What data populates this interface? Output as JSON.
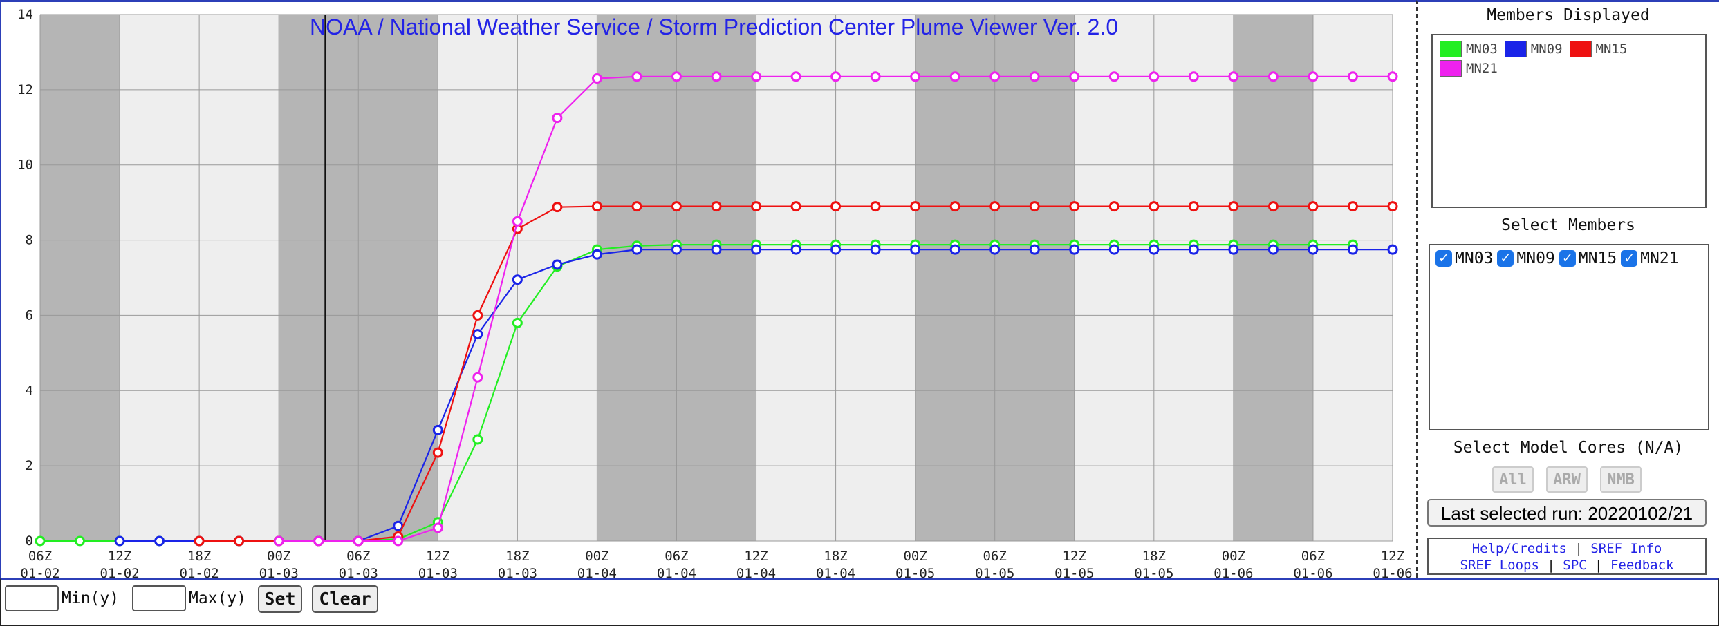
{
  "chart_data": {
    "type": "line",
    "title": "NOAA / National Weather Service / Storm Prediction Center Plume Viewer Ver. 2.0",
    "ylim": [
      0,
      14
    ],
    "yticks": [
      0,
      2,
      4,
      6,
      8,
      10,
      12,
      14
    ],
    "x_tick_labels": [
      [
        "06Z",
        "01-02"
      ],
      [
        "12Z",
        "01-02"
      ],
      [
        "18Z",
        "01-02"
      ],
      [
        "00Z",
        "01-03"
      ],
      [
        "06Z",
        "01-03"
      ],
      [
        "12Z",
        "01-03"
      ],
      [
        "18Z",
        "01-03"
      ],
      [
        "00Z",
        "01-04"
      ],
      [
        "06Z",
        "01-04"
      ],
      [
        "12Z",
        "01-04"
      ],
      [
        "18Z",
        "01-04"
      ],
      [
        "00Z",
        "01-05"
      ],
      [
        "06Z",
        "01-05"
      ],
      [
        "12Z",
        "01-05"
      ],
      [
        "18Z",
        "01-05"
      ],
      [
        "00Z",
        "01-06"
      ],
      [
        "06Z",
        "01-06"
      ],
      [
        "12Z",
        "01-06"
      ]
    ],
    "x_step_hours": 3,
    "current_time_hours_from_start": 21.5,
    "night_bands_hours": [
      [
        0,
        6
      ],
      [
        18,
        30
      ],
      [
        42,
        54
      ],
      [
        66,
        78
      ],
      [
        90,
        96
      ]
    ],
    "grid": true,
    "series": [
      {
        "name": "MN03",
        "color": "#22ee22",
        "start_hour": 0,
        "values": [
          0,
          0,
          0,
          0,
          0,
          0,
          0,
          0,
          0,
          0.05,
          0.5,
          2.7,
          5.8,
          7.3,
          7.75,
          7.85,
          7.88,
          7.88,
          7.88,
          7.88,
          7.88,
          7.88,
          7.88,
          7.88,
          7.88,
          7.88,
          7.88,
          7.88,
          7.88,
          7.88,
          7.88,
          7.88,
          7.88,
          7.88
        ]
      },
      {
        "name": "MN09",
        "color": "#1a24e8",
        "start_hour": 6,
        "values": [
          0,
          0,
          0,
          0,
          0,
          0,
          0,
          0.4,
          2.95,
          5.5,
          6.95,
          7.35,
          7.62,
          7.75,
          7.75,
          7.75,
          7.75,
          7.75,
          7.75,
          7.75,
          7.75,
          7.75,
          7.75,
          7.75,
          7.75,
          7.75,
          7.75,
          7.75,
          7.75,
          7.75,
          7.75,
          7.75,
          7.75,
          7.75
        ]
      },
      {
        "name": "MN15",
        "color": "#ee1111",
        "start_hour": 12,
        "values": [
          0,
          0,
          0,
          0,
          0,
          0.12,
          2.35,
          6.0,
          8.3,
          8.88,
          8.9,
          8.9,
          8.9,
          8.9,
          8.9,
          8.9,
          8.9,
          8.9,
          8.9,
          8.9,
          8.9,
          8.9,
          8.9,
          8.9,
          8.9,
          8.9,
          8.9,
          8.9,
          8.9,
          8.9,
          8.9,
          8.9,
          8.9,
          8.9
        ]
      },
      {
        "name": "MN21",
        "color": "#ee22ee",
        "start_hour": 18,
        "values": [
          0,
          0,
          0,
          0,
          0.35,
          4.35,
          8.5,
          11.25,
          12.3,
          12.35,
          12.35,
          12.35,
          12.35,
          12.35,
          12.35,
          12.35,
          12.35,
          12.35,
          12.35,
          12.35,
          12.35,
          12.35,
          12.35,
          12.35,
          12.35,
          12.35,
          12.35,
          12.35,
          12.35,
          12.35,
          12.35,
          12.35,
          12.35,
          12.35
        ]
      }
    ]
  },
  "sidebar": {
    "members_displayed_title": "Members Displayed",
    "legend": [
      {
        "label": "MN03",
        "color": "#22ee22"
      },
      {
        "label": "MN09",
        "color": "#1a24e8"
      },
      {
        "label": "MN15",
        "color": "#ee1111"
      },
      {
        "label": "MN21",
        "color": "#ee22ee"
      }
    ],
    "select_members_title": "Select Members",
    "members": [
      "MN03",
      "MN09",
      "MN15",
      "MN21"
    ],
    "select_cores_title": "Select Model Cores (N/A)",
    "cores": [
      "All",
      "ARW",
      "NMB"
    ],
    "last_run": "Last selected run: 20220102/21",
    "links": {
      "help": "Help/Credits",
      "sref_info": "SREF Info",
      "sref_loops": "SREF Loops",
      "spc": "SPC",
      "feedback": "Feedback"
    }
  },
  "bottom": {
    "min_label": "Min(y)",
    "max_label": "Max(y)",
    "set_label": "Set",
    "clear_label": "Clear"
  }
}
